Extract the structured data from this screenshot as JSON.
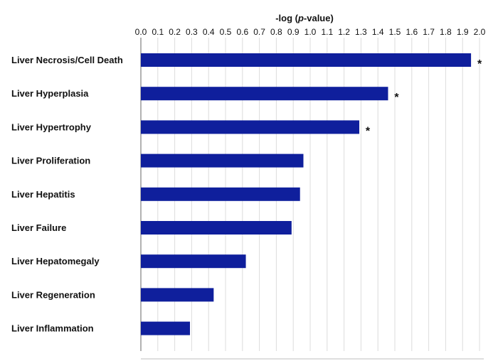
{
  "chart_data": {
    "type": "bar",
    "orientation": "horizontal",
    "title_parts": [
      "-log (",
      "p",
      "-value)"
    ],
    "xaxis_position": "top",
    "xlim": [
      0.0,
      2.0
    ],
    "xticks": [
      "0.0",
      "0.1",
      "0.2",
      "0.3",
      "0.4",
      "0.5",
      "0.6",
      "0.7",
      "0.8",
      "0.9",
      "1.0",
      "1.1",
      "1.2",
      "1.3",
      "1.4",
      "1.5",
      "1.6",
      "1.7",
      "1.8",
      "1.9",
      "2.0"
    ],
    "grid": "vertical",
    "categories": [
      "Liver Necrosis/Cell Death",
      "Liver Hyperplasia",
      "Liver Hypertrophy",
      "Liver Proliferation",
      "Liver  Hepatitis",
      "Liver Failure",
      "Liver Hepatomegaly",
      "Liver Regeneration",
      "Liver Inflammation"
    ],
    "values": [
      1.95,
      1.46,
      1.29,
      0.96,
      0.94,
      0.89,
      0.62,
      0.43,
      0.29
    ],
    "significance_marker": "*",
    "significant": [
      true,
      true,
      true,
      false,
      false,
      false,
      false,
      false,
      false
    ],
    "colors": {
      "bar": "#0f1f9c",
      "grid": "#dcdcdc",
      "axis": "#666666",
      "text": "#111111"
    }
  }
}
